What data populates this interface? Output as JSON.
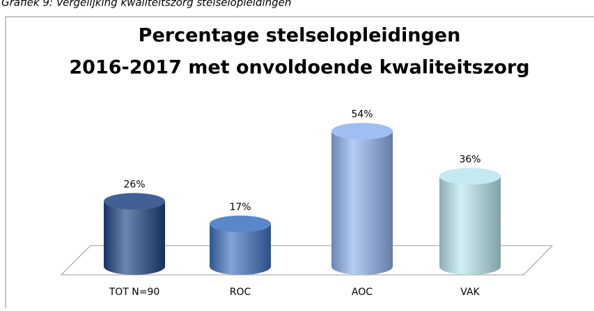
{
  "caption": "Grafiek 9: Vergelijking kwaliteitszorg stelselopleidingen",
  "chart_data": {
    "type": "cylinder-bar",
    "title": [
      "Percentage stelselopleidingen",
      "2016-2017 met onvoldoende kwaliteitszorg"
    ],
    "categories": [
      "TOT N=90",
      "ROC",
      "AOC",
      "VAK"
    ],
    "values": [
      26,
      17,
      54,
      36
    ],
    "value_labels": [
      "26%",
      "17%",
      "54%",
      "36%"
    ],
    "colors": [
      "#1f4582",
      "#3d72c0",
      "#8fb3ee",
      "#b9e6ef"
    ]
  }
}
